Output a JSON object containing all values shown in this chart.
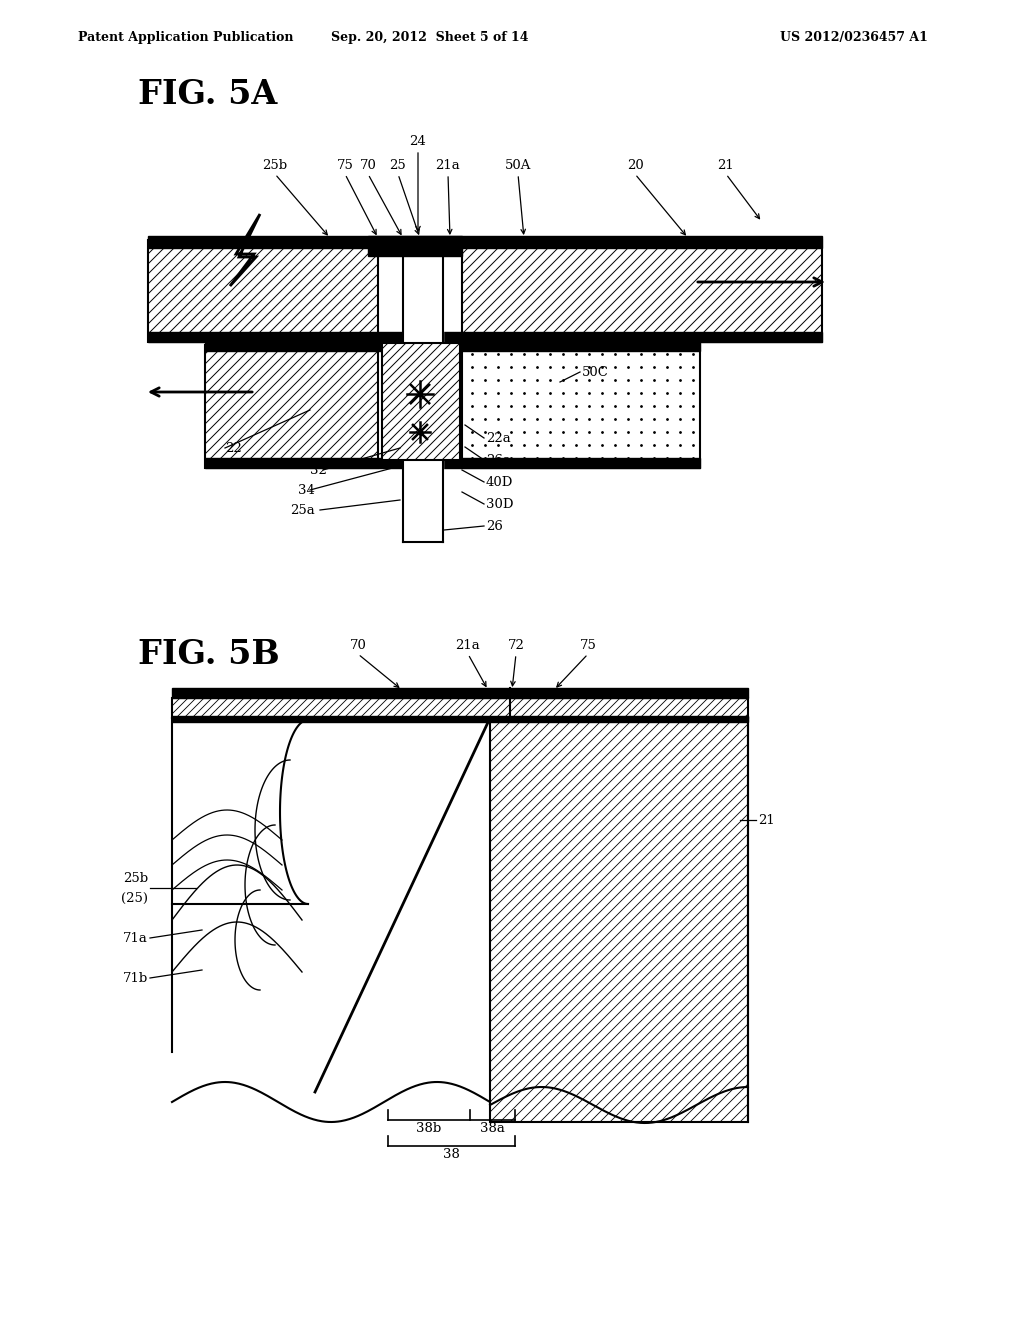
{
  "header_left": "Patent Application Publication",
  "header_center": "Sep. 20, 2012  Sheet 5 of 14",
  "header_right": "US 2012/0236457 A1",
  "fig5a_label": "FIG. 5A",
  "fig5b_label": "FIG. 5B",
  "bg_color": "#ffffff"
}
